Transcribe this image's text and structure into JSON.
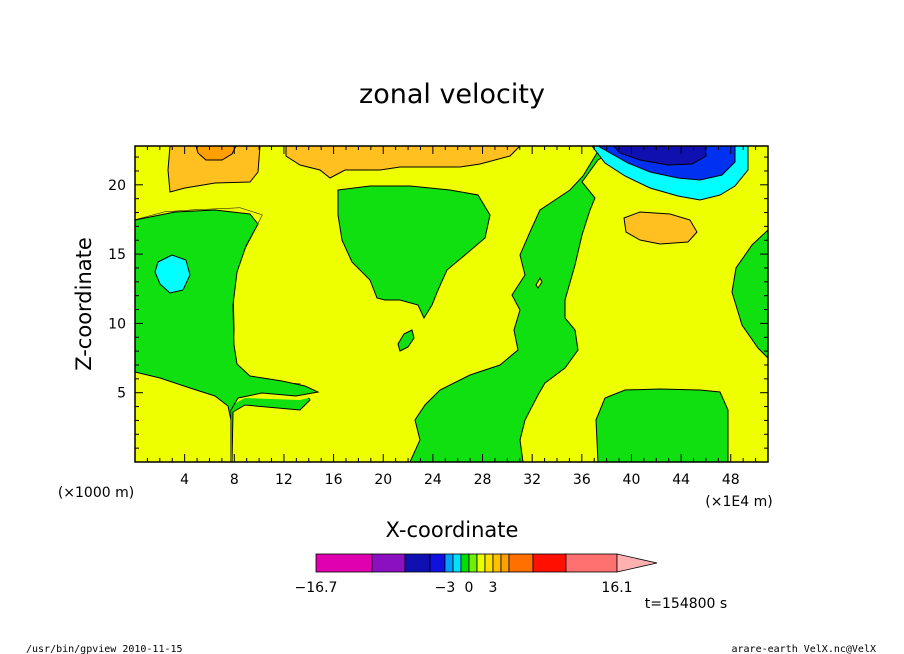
{
  "chart_data": {
    "type": "contour",
    "title": "zonal velocity",
    "xlabel": "X-coordinate",
    "ylabel": "Z-coordinate",
    "x_unit_left": "(×1000 m)",
    "x_unit_right": "(×1E4 m)",
    "xlim": [
      0,
      51
    ],
    "ylim": [
      0,
      22.8
    ],
    "x_ticks": [
      "4",
      "8",
      "12",
      "16",
      "20",
      "24",
      "28",
      "32",
      "36",
      "40",
      "44",
      "48"
    ],
    "y_ticks": [
      "5",
      "10",
      "15",
      "20"
    ],
    "colorbar": {
      "colors": [
        "#e000b0",
        "#8a10c0",
        "#1010b0",
        "#1010e0",
        "#00a0ff",
        "#00e0ff",
        "#00e000",
        "#70f000",
        "#e8ff00",
        "#ffe000",
        "#ffc000",
        "#ffa000",
        "#ff7000",
        "#ff1000",
        "#ff7070",
        "#ffb0b0"
      ],
      "labels": [
        "−16.7",
        "−3",
        "0",
        "3",
        "16.1"
      ]
    },
    "time_label": "t=154800 s"
  },
  "footer": {
    "left": "/usr/bin/gpview  2010-11-15",
    "right": "arare-earth_VelX.nc@VelX"
  },
  "palette": {
    "yellow": "#eeff00",
    "green": "#10e010",
    "orange": "#ffc020",
    "cyan": "#00ffff",
    "blue": "#0030f0",
    "navy": "#1010b0"
  }
}
